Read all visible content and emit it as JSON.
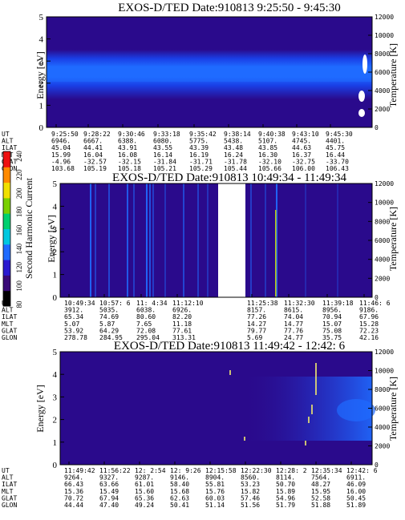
{
  "colors": {
    "background": "#2a0a8c",
    "band_core": "#1f6bff",
    "band_edge": "#1a3fe6",
    "axis": "#000000"
  },
  "colorbar": {
    "label": "Second Harmonic Current",
    "ticks": [
      "80",
      "100",
      "120",
      "140",
      "160",
      "180",
      "200",
      "220",
      "240"
    ],
    "stops": [
      "#000000",
      "#3a0a78",
      "#2a1ad0",
      "#1f6bff",
      "#00c8e0",
      "#00d070",
      "#7ad000",
      "#f0e000",
      "#ff8a00",
      "#ee1010"
    ]
  },
  "panels": [
    {
      "title": "EXOS-D/TED   Date:910813  9:25:50 - 9:45:30",
      "ylabel": "Energy [eV]",
      "y2label": "Temperature [K]",
      "yticks": [
        "0",
        "1",
        "2",
        "3",
        "4",
        "5"
      ],
      "y2ticks": [
        "0",
        "2000",
        "4000",
        "6000",
        "8000",
        "10000",
        "12000"
      ],
      "orbit_labels": [
        "UT",
        "ALT",
        "ILAT",
        "MLT",
        "GLAT",
        "GLON"
      ],
      "orbit": [
        [
          "9:25:50",
          "6946.",
          "45.04",
          "15.99",
          "-4.96",
          "103.68"
        ],
        [
          "9:28:22",
          "6667.",
          "44.41",
          "16.04",
          "-32.57",
          "105.19"
        ],
        [
          "9:30:46",
          "6388.",
          "43.91",
          "16.08",
          "-32.15",
          "105.18"
        ],
        [
          "9:33:18",
          "6080.",
          "43.55",
          "16.14",
          "-31.84",
          "105.21"
        ],
        [
          "9:35:42",
          "5775.",
          "43.39",
          "16.19",
          "-31.71",
          "105.29"
        ],
        [
          "9:38:14",
          "5438.",
          "43.48",
          "16.24",
          "-31.78",
          "105.44"
        ],
        [
          "9:40:38",
          "5107.",
          "43.85",
          "16.30",
          "-32.10",
          "105.66"
        ],
        [
          "9:43:10",
          "4745.",
          "44.63",
          "16.37",
          "-32.75",
          "106.00"
        ],
        [
          "9:45:30",
          "4401.",
          "45.75",
          "16.44",
          "-33.70",
          "106.43"
        ]
      ]
    },
    {
      "title": "EXOS-D/TED   Date:910813  10:49:34 - 11:49:34",
      "ylabel": "Energy [eV]",
      "y2label": "Temperature [K]",
      "yticks": [
        "0",
        "1",
        "2",
        "3",
        "4",
        "5"
      ],
      "y2ticks": [
        "0",
        "2000",
        "4000",
        "6000",
        "8000",
        "10000",
        "12000"
      ],
      "orbit_labels": [
        "UT",
        "ALT",
        "ILAT",
        "MLT",
        "GLAT",
        "GLON"
      ],
      "orbit": [
        [
          "10:49:34",
          "3912.",
          "65.34",
          "5.07",
          "53.92",
          "278.78"
        ],
        [
          "10:57: 6",
          "5035.",
          "74.69",
          "5.87",
          "64.29",
          "284.95"
        ],
        [
          "11: 4:34",
          "6038.",
          "80.60",
          "7.65",
          "72.08",
          "295.04"
        ],
        [
          "11:12:10",
          "6926.",
          "82.20",
          "11.18",
          "77.61",
          "313.31"
        ],
        [
          "11:25:38",
          "8157.",
          "77.26",
          "14.27",
          "79.77",
          "5.69"
        ],
        [
          "11:32:30",
          "8615.",
          "74.04",
          "14.77",
          "77.76",
          "24.77"
        ],
        [
          "11:39:18",
          "8956.",
          "70.94",
          "15.07",
          "75.08",
          "35.75"
        ],
        [
          "11:46: 6",
          "9186.",
          "67.96",
          "15.28",
          "72.23",
          "42.16"
        ]
      ]
    },
    {
      "title": "EXOS-D/TED   Date:910813  11:49:42 - 12:42: 6",
      "ylabel": "Energy [eV]",
      "y2label": "Temperature [K]",
      "yticks": [
        "0",
        "1",
        "2",
        "3",
        "4",
        "5"
      ],
      "y2ticks": [
        "0",
        "2000",
        "4000",
        "6000",
        "8000",
        "10000",
        "12000"
      ],
      "orbit_labels": [
        "UT",
        "ALT",
        "ILAT",
        "MLT",
        "GLAT",
        "GLON"
      ],
      "orbit": [
        [
          "11:49:42",
          "9264.",
          "66.43",
          "15.36",
          "70.72",
          "44.44"
        ],
        [
          "11:56:22",
          "9327.",
          "63.66",
          "15.49",
          "67.94",
          "47.40"
        ],
        [
          "12: 2:54",
          "9287.",
          "61.01",
          "15.60",
          "65.36",
          "49.24"
        ],
        [
          "12: 9:26",
          "9146.",
          "58.40",
          "15.68",
          "62.63",
          "50.41"
        ],
        [
          "12:15:58",
          "8904.",
          "55.81",
          "15.76",
          "60.03",
          "51.14"
        ],
        [
          "12:22:30",
          "8560.",
          "53.23",
          "15.82",
          "57.46",
          "51.56"
        ],
        [
          "12:28: 2",
          "8114.",
          "50.70",
          "15.89",
          "54.96",
          "51.79"
        ],
        [
          "12:35:34",
          "7564.",
          "48.27",
          "15.95",
          "52.58",
          "51.88"
        ],
        [
          "12:42: 6",
          "6911.",
          "46.09",
          "16.00",
          "50.45",
          "51.89"
        ]
      ]
    }
  ],
  "chart_data": [
    {
      "type": "heatmap",
      "title": "EXOS-D/TED   Date:910813  9:25:50 - 9:45:30",
      "ylabel": "Energy [eV]",
      "y2label": "Temperature [K]",
      "ylim": [
        0,
        5
      ],
      "y2lim": [
        0,
        12000
      ],
      "x": [
        "9:25:50",
        "9:28:22",
        "9:30:46",
        "9:33:18",
        "9:35:42",
        "9:38:14",
        "9:40:38",
        "9:43:10",
        "9:45:30"
      ],
      "peak_band_energy_eV": [
        1.5,
        3.0
      ],
      "temperature_points_K": [
        1800,
        2900,
        3400,
        6600
      ]
    },
    {
      "type": "heatmap",
      "title": "EXOS-D/TED   Date:910813  10:49:34 - 11:49:34",
      "ylabel": "Energy [eV]",
      "y2label": "Temperature [K]",
      "ylim": [
        0,
        5
      ],
      "y2lim": [
        0,
        12000
      ],
      "x": [
        "10:49:34",
        "10:57: 6",
        "11: 4:34",
        "11:12:10",
        "11:25:38",
        "11:32:30",
        "11:39:18",
        "11:46: 6"
      ],
      "data_gap": [
        "11:16",
        "11:23"
      ]
    },
    {
      "type": "heatmap",
      "title": "EXOS-D/TED   Date:910813  11:49:42 - 12:42: 6",
      "ylabel": "Energy [eV]",
      "y2label": "Temperature [K]",
      "ylim": [
        0,
        5
      ],
      "y2lim": [
        0,
        12000
      ],
      "x": [
        "11:49:42",
        "11:56:22",
        "12: 2:54",
        "12: 9:26",
        "12:15:58",
        "12:22:30",
        "12:28: 2",
        "12:35:34",
        "12:42: 6"
      ]
    }
  ]
}
